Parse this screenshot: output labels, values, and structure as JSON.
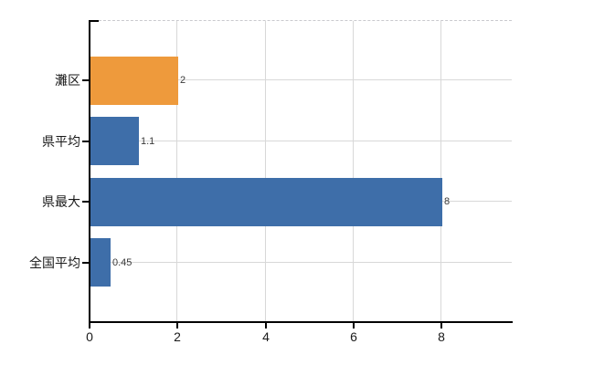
{
  "chart_data": {
    "type": "bar",
    "orientation": "horizontal",
    "title": "",
    "categories": [
      "灘区",
      "県平均",
      "県最大",
      "全国平均"
    ],
    "values": [
      2,
      1.1,
      8,
      0.45
    ],
    "value_labels": [
      "2",
      "1.1",
      "8",
      "0.45"
    ],
    "bar_colors": [
      "#EE9A3C",
      "#3E6EA9",
      "#3E6EA9",
      "#3E6EA9"
    ],
    "x_ticks": [
      0,
      2,
      4,
      6,
      8
    ],
    "x_tick_labels": [
      "0",
      "2",
      "4",
      "6",
      "8"
    ],
    "xlim": [
      0,
      9.6
    ],
    "grid": true,
    "legend": "none"
  },
  "colors": {
    "highlight_bar": "#EE9A3C",
    "default_bar": "#3E6EA9",
    "gridline": "#d8d8d8",
    "top_border_dash": "#c9c9ce",
    "axis": "#000000",
    "value_text": "#3a3a3a",
    "label_text": "#1a1a1a",
    "background": "#ffffff"
  }
}
